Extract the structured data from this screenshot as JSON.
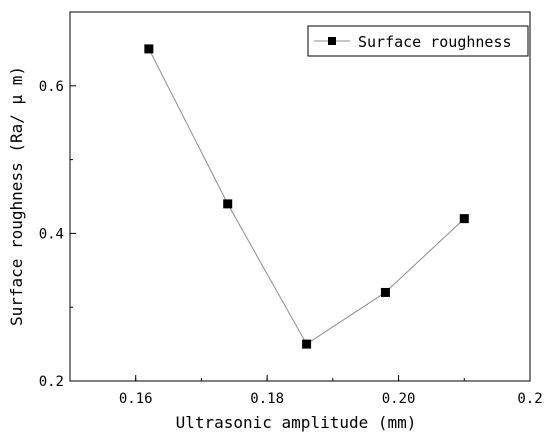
{
  "chart_data": {
    "type": "line",
    "title": "",
    "xlabel": "Ultrasonic amplitude (mm)",
    "ylabel": "Surface roughness (Ra/ μ m)",
    "xlim": [
      0.15,
      0.22
    ],
    "ylim": [
      0.2,
      0.7
    ],
    "x_ticks": [
      "0.16",
      "0.18",
      "0.20",
      "0.2"
    ],
    "y_ticks": [
      "0.2",
      "0.4",
      "0.6"
    ],
    "grid": false,
    "legend_position": "top-right",
    "series": [
      {
        "name": "Surface roughness",
        "color": "#000000",
        "line_color": "#8c8c8c",
        "marker": "square",
        "x": [
          0.162,
          0.174,
          0.186,
          0.198,
          0.21
        ],
        "y": [
          0.65,
          0.44,
          0.25,
          0.32,
          0.42
        ]
      }
    ]
  }
}
